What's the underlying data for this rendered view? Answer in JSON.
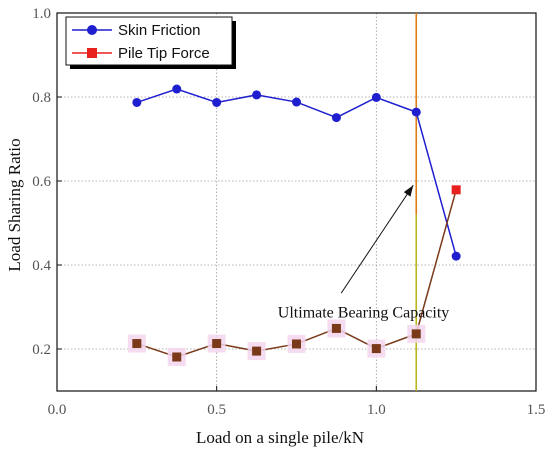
{
  "chart_data": {
    "type": "line",
    "xlabel": "Load on a single pile/kN",
    "ylabel": "Load Sharing Ratio",
    "xlim": [
      0.0,
      1.5
    ],
    "ylim": [
      0.1,
      1.0
    ],
    "xticks": [
      0.0,
      0.5,
      1.0,
      1.5
    ],
    "xtick_labels": [
      "0.0",
      "0.5",
      "1.0",
      "1.5"
    ],
    "yticks": [
      0.2,
      0.4,
      0.6,
      0.8,
      1.0
    ],
    "ytick_labels": [
      "0.2",
      "0.4",
      "0.6",
      "0.8",
      "1.0"
    ],
    "grid": true,
    "legend_position": "top-left",
    "series": [
      {
        "name": "Skin Friction",
        "color": "#1f1fd0",
        "marker": "circle",
        "x": [
          0.25,
          0.375,
          0.5,
          0.625,
          0.75,
          0.875,
          1.0,
          1.125,
          1.25
        ],
        "y": [
          0.787,
          0.819,
          0.787,
          0.805,
          0.788,
          0.751,
          0.799,
          0.764,
          0.421
        ]
      },
      {
        "name": "Pile Tip Force",
        "color": "#e8201e",
        "line_color": "#7a3a1a",
        "marker": "square",
        "x": [
          0.25,
          0.375,
          0.5,
          0.625,
          0.75,
          0.875,
          1.0,
          1.125,
          1.25
        ],
        "y": [
          0.213,
          0.181,
          0.213,
          0.195,
          0.212,
          0.249,
          0.201,
          0.236,
          0.579
        ]
      }
    ],
    "vertical_line": {
      "x": 1.125,
      "color_top": "#e07b1a",
      "color_bottom": "#b8b81a"
    },
    "annotations": [
      {
        "text": "Ultimate Bearing Capacity",
        "x": 0.96,
        "y": 0.275,
        "arrow_to": [
          1.125,
          0.59
        ]
      }
    ]
  }
}
